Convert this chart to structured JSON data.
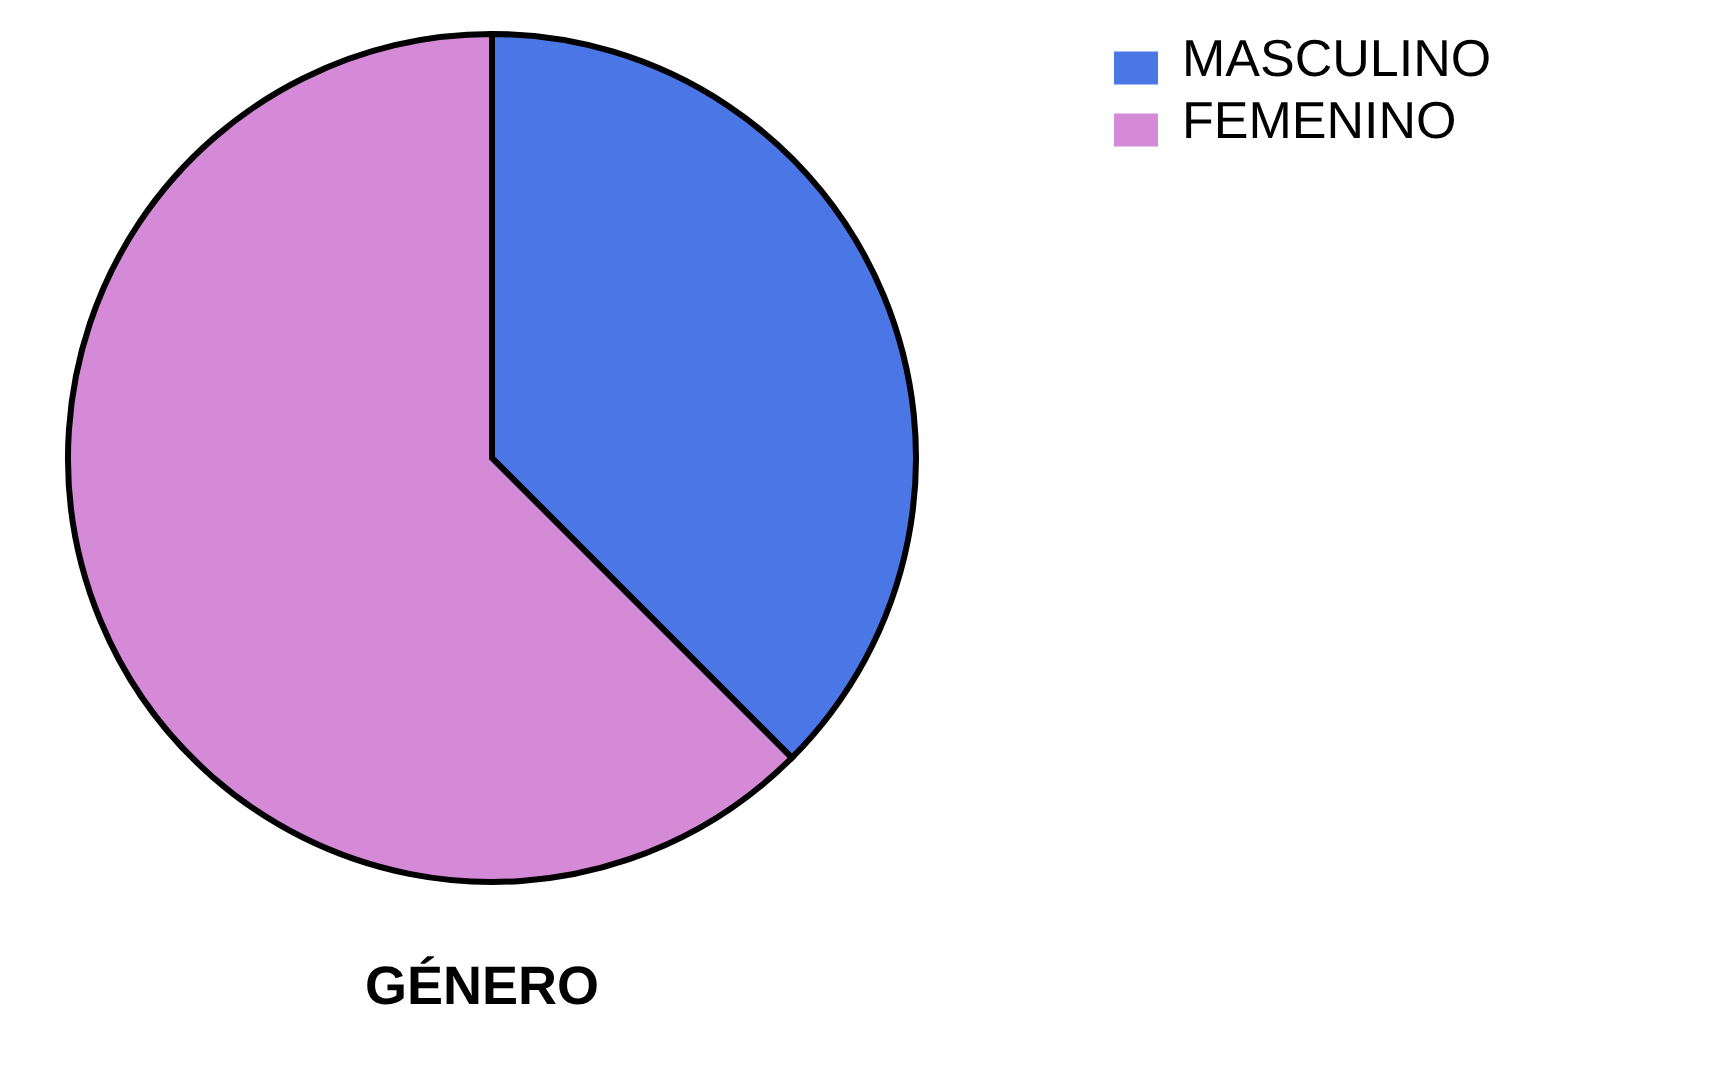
{
  "chart_data": {
    "type": "pie",
    "title": "GÉNERO",
    "categories": [
      "MASCULINO",
      "FEMENINO"
    ],
    "values": [
      37.5,
      62.5
    ],
    "colors": [
      "#4a76e6",
      "#d58ad8"
    ],
    "legend": "top right"
  }
}
